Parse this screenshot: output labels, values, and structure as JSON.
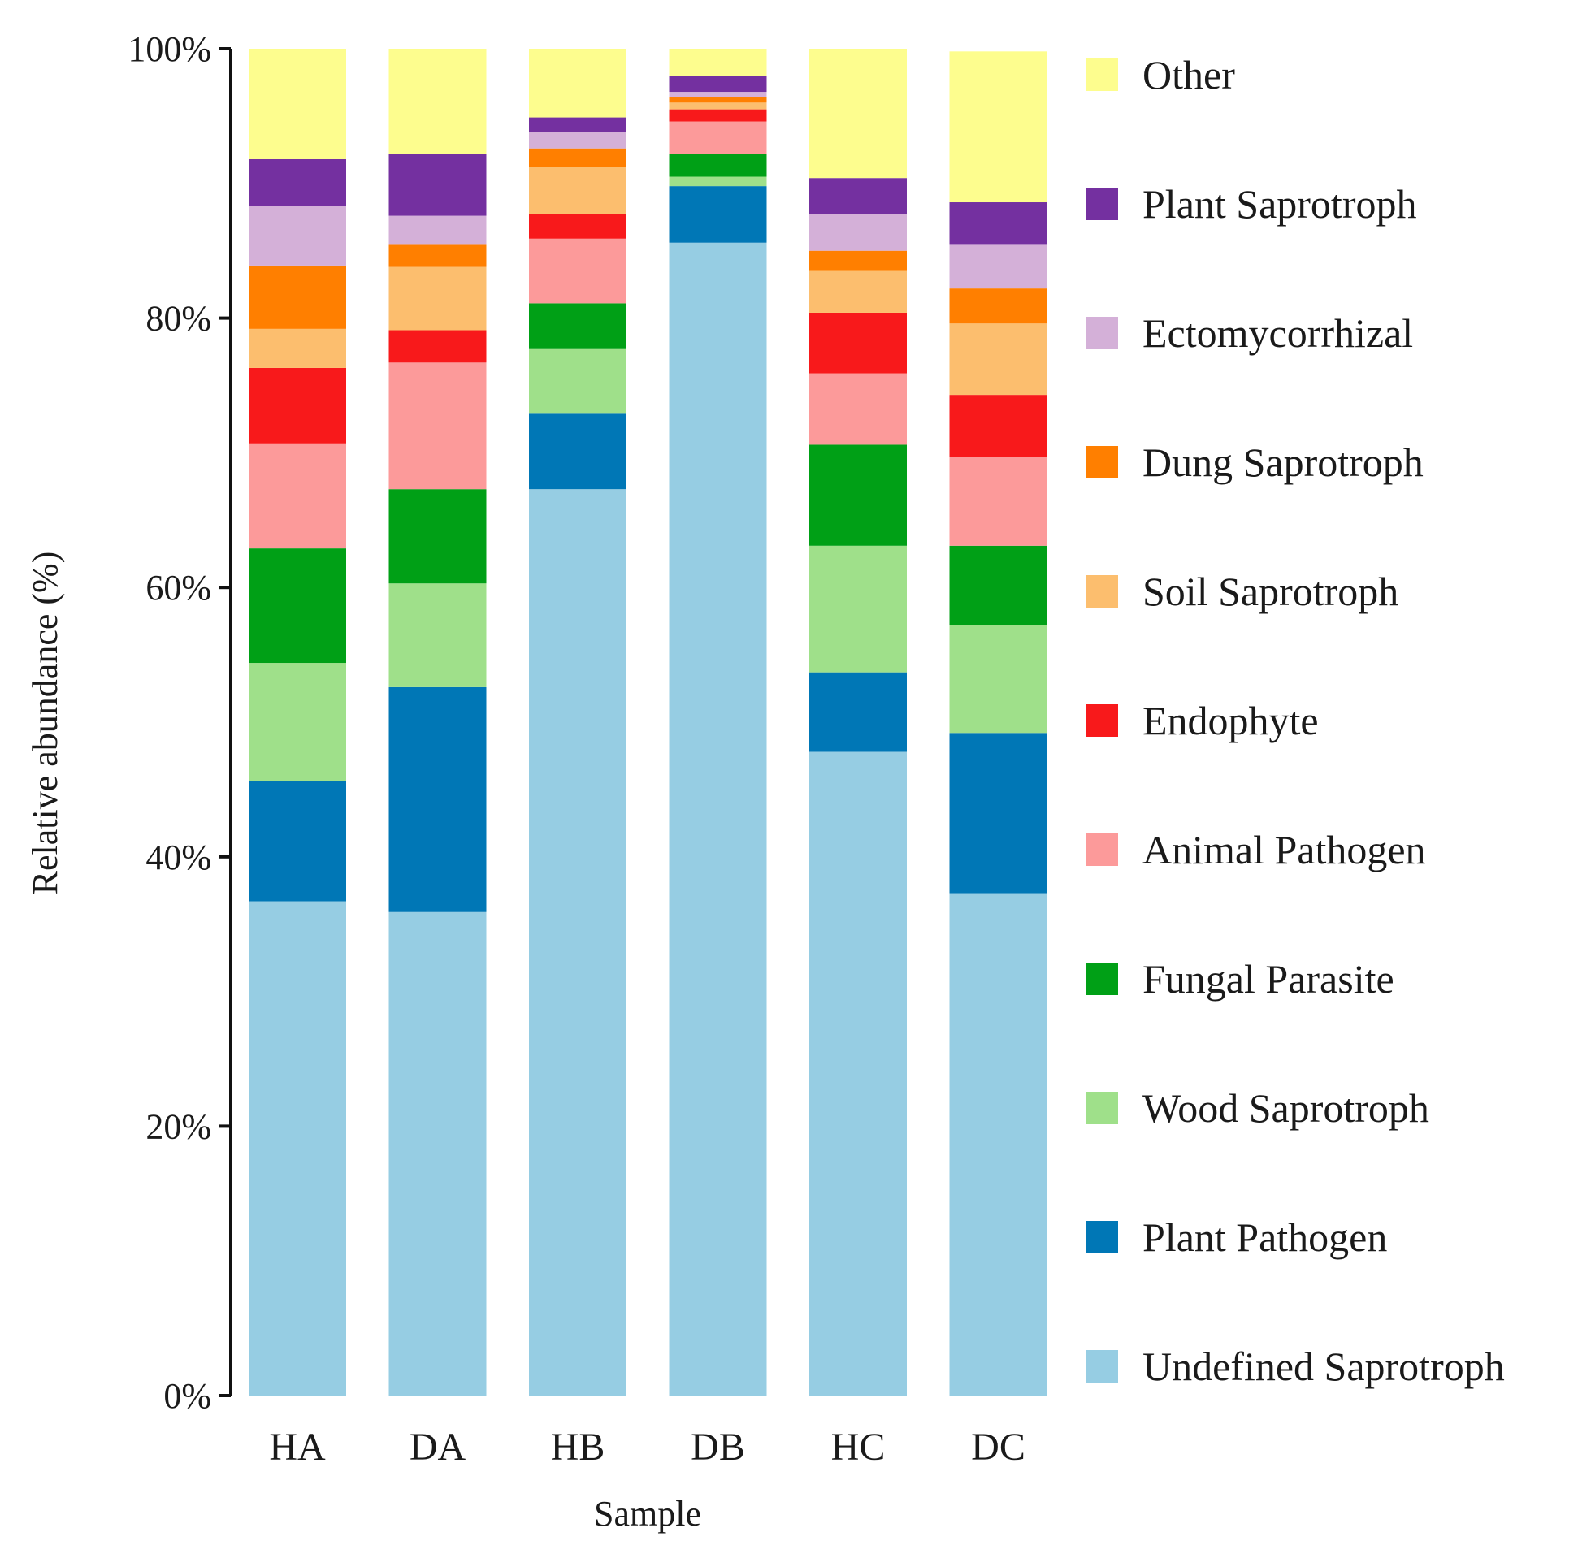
{
  "chart_data": {
    "type": "bar",
    "stacked": true,
    "title": "",
    "xlabel": "Sample",
    "ylabel": "Relative abundance (%)",
    "ylim": [
      0,
      100
    ],
    "y_ticks": [
      0,
      20,
      40,
      60,
      80,
      100
    ],
    "y_tick_labels": [
      "0%",
      "20%",
      "40%",
      "60%",
      "80%",
      "100%"
    ],
    "categories": [
      "HA",
      "DA",
      "HB",
      "DB",
      "HC",
      "DC"
    ],
    "legend_position": "right",
    "series": [
      {
        "name": "Undefined Saprotroph",
        "color": "#96cde3",
        "values": [
          36.7,
          35.9,
          67.3,
          85.6,
          47.8,
          37.3
        ]
      },
      {
        "name": "Plant Pathogen",
        "color": "#0077b6",
        "values": [
          8.9,
          16.7,
          5.6,
          4.2,
          5.9,
          11.9
        ]
      },
      {
        "name": "Wood Saprotroph",
        "color": "#9fe08a",
        "values": [
          8.8,
          7.7,
          4.8,
          0.7,
          9.4,
          8.0
        ]
      },
      {
        "name": "Fungal Parasite",
        "color": "#00a016",
        "values": [
          8.5,
          7.0,
          3.4,
          1.7,
          7.5,
          5.9
        ]
      },
      {
        "name": "Animal Pathogen",
        "color": "#fc9a9a",
        "values": [
          7.8,
          9.4,
          4.8,
          2.4,
          5.3,
          6.6
        ]
      },
      {
        "name": "Endophyte",
        "color": "#f8191b",
        "values": [
          5.6,
          2.4,
          1.8,
          0.9,
          4.5,
          4.6
        ]
      },
      {
        "name": "Soil Saprotroph",
        "color": "#fcbe6e",
        "values": [
          2.9,
          4.7,
          3.5,
          0.5,
          3.1,
          5.3
        ]
      },
      {
        "name": "Dung Saprotroph",
        "color": "#ff7f00",
        "values": [
          4.7,
          1.7,
          1.4,
          0.4,
          1.5,
          2.6
        ]
      },
      {
        "name": "Ectomycorrhizal",
        "color": "#d4b0d8",
        "values": [
          4.4,
          2.1,
          1.2,
          0.4,
          2.7,
          3.3
        ]
      },
      {
        "name": "Plant Saprotroph",
        "color": "#7430a0",
        "values": [
          3.5,
          4.6,
          1.1,
          1.2,
          2.7,
          3.1
        ]
      },
      {
        "name": "Other",
        "color": "#fdfd8e",
        "values": [
          8.2,
          7.8,
          5.1,
          2.0,
          9.6,
          11.2
        ]
      }
    ]
  }
}
